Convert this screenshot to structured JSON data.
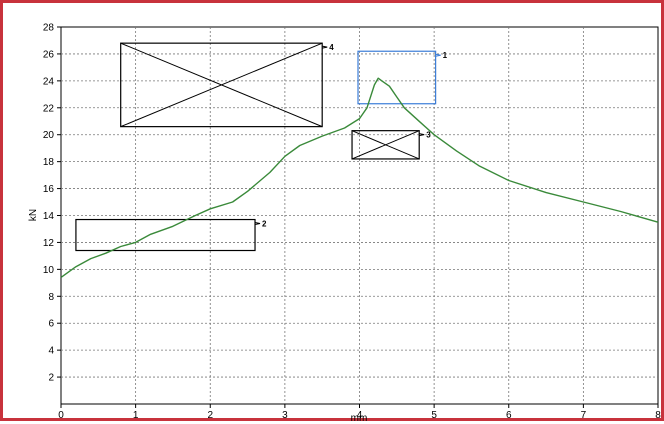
{
  "chart_data": {
    "type": "line",
    "title": "",
    "xlabel": "mm",
    "ylabel": "kN",
    "xlim": [
      0,
      8
    ],
    "ylim": [
      0,
      28
    ],
    "x_ticks": [
      "0",
      "1",
      "2",
      "3",
      "4",
      "5",
      "6",
      "7",
      "8"
    ],
    "y_ticks": [
      "2",
      "4",
      "6",
      "8",
      "10",
      "12",
      "14",
      "16",
      "18",
      "20",
      "22",
      "24",
      "26",
      "28"
    ],
    "grid": true,
    "series": [
      {
        "color": "#3a8a3a",
        "x": [
          0,
          0.2,
          0.4,
          0.6,
          0.8,
          1.0,
          1.2,
          1.5,
          1.8,
          2.0,
          2.3,
          2.5,
          2.8,
          3.0,
          3.2,
          3.5,
          3.8,
          4.0,
          4.1,
          4.2,
          4.25,
          4.3,
          4.4,
          4.5,
          4.6,
          4.8,
          5.0,
          5.3,
          5.6,
          6.0,
          6.5,
          7.0,
          7.5,
          8.0
        ],
        "y": [
          9.4,
          10.2,
          10.8,
          11.2,
          11.7,
          12.0,
          12.6,
          13.2,
          14.0,
          14.5,
          15.0,
          15.8,
          17.2,
          18.4,
          19.2,
          19.9,
          20.5,
          21.2,
          22.0,
          23.7,
          24.2,
          24.0,
          23.6,
          22.8,
          22.0,
          21.0,
          20.0,
          18.8,
          17.7,
          16.6,
          15.7,
          15.0,
          14.3,
          13.5
        ]
      }
    ],
    "annotation_boxes": [
      {
        "label": "1",
        "x0": 3.98,
        "x1": 5.02,
        "y0": 22.3,
        "y1": 26.2,
        "color": "#3b7dd8",
        "cross": false
      },
      {
        "label": "2",
        "x0": 0.2,
        "x1": 2.6,
        "y0": 11.4,
        "y1": 13.7,
        "color": "#000000",
        "cross": false
      },
      {
        "label": "3",
        "x0": 3.9,
        "x1": 4.8,
        "y0": 18.2,
        "y1": 20.3,
        "color": "#000000",
        "cross": true
      },
      {
        "label": "4",
        "x0": 0.8,
        "x1": 3.5,
        "y0": 20.6,
        "y1": 26.8,
        "color": "#000000",
        "cross": true
      }
    ]
  }
}
